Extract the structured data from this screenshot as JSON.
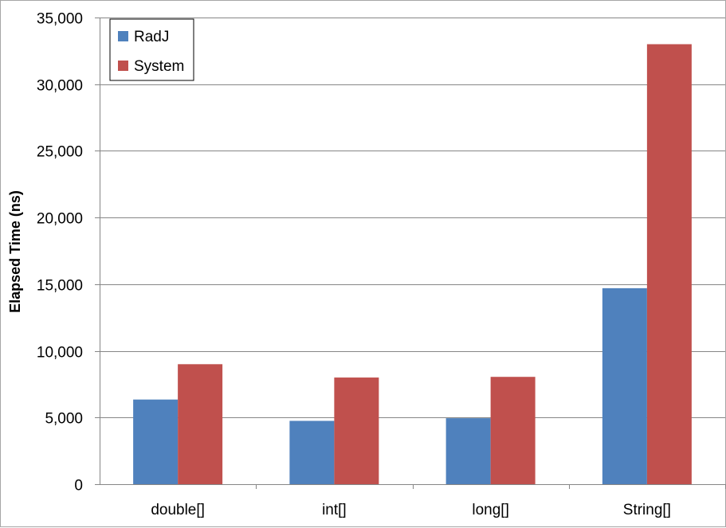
{
  "chart_data": {
    "type": "bar",
    "title": "",
    "xlabel": "",
    "ylabel": "Elapsed Time (ns)",
    "categories": [
      "double[]",
      "int[]",
      "long[]",
      "String[]"
    ],
    "series": [
      {
        "name": "RadJ",
        "color": "#4f81bd",
        "values": [
          6350,
          4750,
          4950,
          14700
        ]
      },
      {
        "name": "System",
        "color": "#c0504d",
        "values": [
          9000,
          8000,
          8050,
          33000
        ]
      }
    ],
    "ylim": [
      0,
      35000
    ],
    "yticks": [
      0,
      5000,
      10000,
      15000,
      20000,
      25000,
      30000,
      35000
    ],
    "ytick_labels": [
      "0",
      "5,000",
      "10,000",
      "15,000",
      "20,000",
      "25,000",
      "30,000",
      "35,000"
    ],
    "grid": true,
    "legend": {
      "placement": "top-left",
      "entries": [
        "RadJ",
        "System"
      ]
    }
  }
}
